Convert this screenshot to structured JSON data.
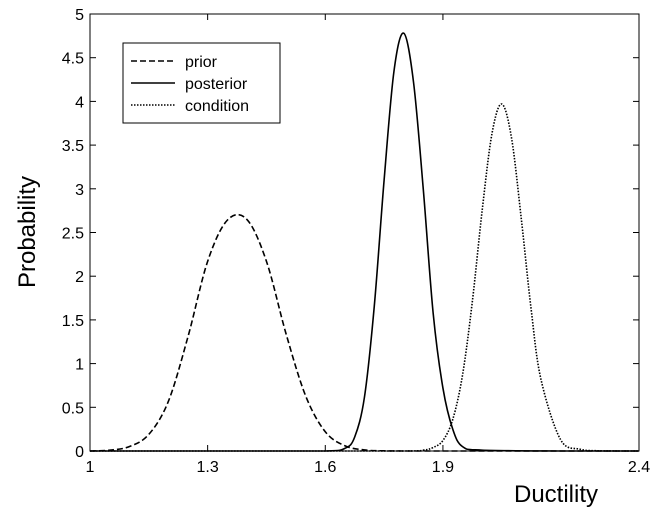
{
  "chart_data": {
    "type": "line",
    "title": "",
    "xlabel": "Ductility",
    "ylabel": "Probability",
    "xlim": [
      1,
      2.4
    ],
    "ylim": [
      0,
      5
    ],
    "xticks": [
      1,
      1.3,
      1.6,
      1.9,
      2.4
    ],
    "xtick_labels": [
      "1",
      "1.3",
      "1.6",
      "1.9",
      "2.4"
    ],
    "yticks": [
      0,
      0.5,
      1,
      1.5,
      2,
      2.5,
      3,
      3.5,
      4,
      4.5,
      5
    ],
    "ytick_labels": [
      "0",
      "0.5",
      "1",
      "1.5",
      "2",
      "2.5",
      "3",
      "3.5",
      "4",
      "4.5",
      "5"
    ],
    "grid": false,
    "legend_position": "top-left",
    "series": [
      {
        "name": "prior",
        "style": "dashed",
        "color": "#000000",
        "x": [
          1.0,
          1.05,
          1.1,
          1.15,
          1.2,
          1.25,
          1.3,
          1.35,
          1.4,
          1.45,
          1.5,
          1.55,
          1.6,
          1.65,
          1.7,
          1.75,
          1.8,
          1.9,
          2.0,
          2.1,
          2.2,
          2.3,
          2.4
        ],
        "y": [
          0.0,
          0.01,
          0.05,
          0.19,
          0.57,
          1.31,
          2.17,
          2.64,
          2.65,
          2.17,
          1.34,
          0.63,
          0.22,
          0.06,
          0.012,
          0.002,
          0.0,
          0.0,
          0.0,
          0.0,
          0.0,
          0.0,
          0.0
        ]
      },
      {
        "name": "posterior",
        "style": "solid",
        "color": "#000000",
        "x": [
          1.0,
          1.2,
          1.4,
          1.6,
          1.65,
          1.675,
          1.7,
          1.725,
          1.75,
          1.775,
          1.8,
          1.825,
          1.85,
          1.875,
          1.9,
          1.925,
          1.95,
          2.0,
          2.2,
          2.4
        ],
        "y": [
          0.0,
          0.0,
          0.0,
          0.0,
          0.03,
          0.16,
          0.62,
          1.66,
          3.1,
          4.34,
          4.78,
          4.22,
          2.99,
          1.58,
          0.72,
          0.25,
          0.05,
          0.01,
          0.0,
          0.0
        ]
      },
      {
        "name": "condition",
        "style": "dotted",
        "color": "#000000",
        "x": [
          1.0,
          1.5,
          1.8,
          1.85,
          1.875,
          1.9,
          1.925,
          1.95,
          1.975,
          2.0,
          2.025,
          2.05,
          2.075,
          2.1,
          2.125,
          2.15,
          2.2,
          2.25,
          2.3,
          2.35,
          2.4
        ],
        "y": [
          0.0,
          0.0,
          0.0,
          0.01,
          0.04,
          0.12,
          0.36,
          0.87,
          1.71,
          2.75,
          3.63,
          3.97,
          3.58,
          2.65,
          1.62,
          0.82,
          0.13,
          0.02,
          0.002,
          0.0,
          0.0
        ]
      }
    ]
  }
}
